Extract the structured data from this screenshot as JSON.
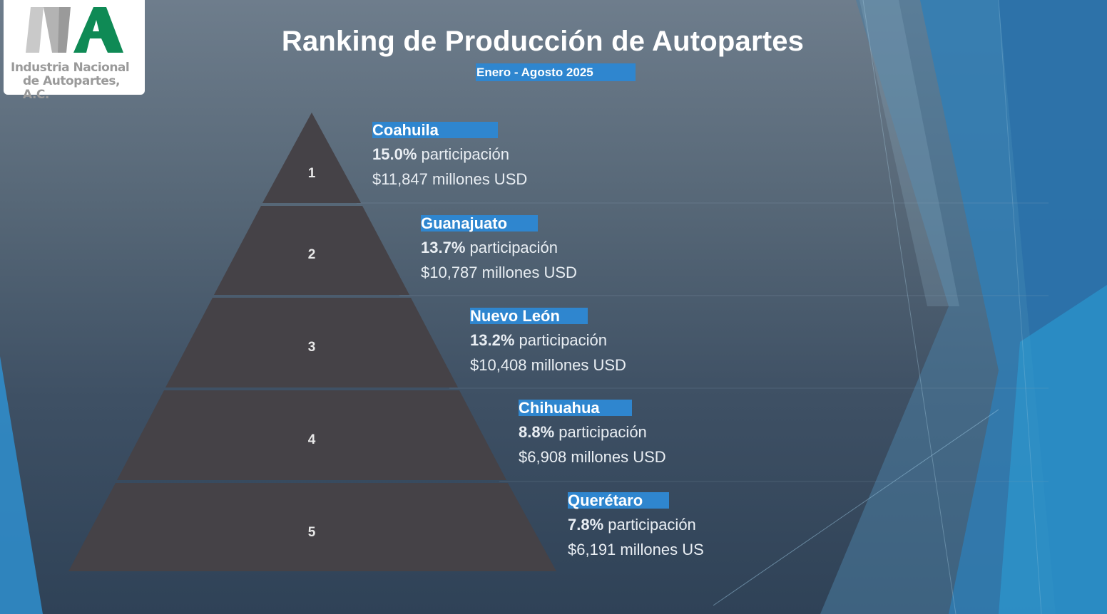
{
  "logo": {
    "line1": "Industria Nacional",
    "line2": "de Autopartes, A.C."
  },
  "title": "Ranking de Producción de Autopartes",
  "subtitle": "Enero - Agosto 2025",
  "colors": {
    "accent": "#2f86cf",
    "pyramid": "#454247",
    "logo_green": "#0f8a55"
  },
  "ranking": [
    {
      "rank": "1",
      "state": "Coahuila",
      "share": "15.0%",
      "share_label": "participación",
      "value": "$11,847 millones USD"
    },
    {
      "rank": "2",
      "state": "Guanajuato",
      "share": "13.7%",
      "share_label": "participación",
      "value": "$10,787 millones USD"
    },
    {
      "rank": "3",
      "state": "Nuevo León",
      "share": "13.2%",
      "share_label": "participación",
      "value": "$10,408 millones USD"
    },
    {
      "rank": "4",
      "state": "Chihuahua",
      "share": "8.8%",
      "share_label": "participación",
      "value": "$6,908 millones USD"
    },
    {
      "rank": "5",
      "state": "Querétaro",
      "share": "7.8%",
      "share_label": "participación",
      "value": "$6,191 millones US"
    }
  ]
}
